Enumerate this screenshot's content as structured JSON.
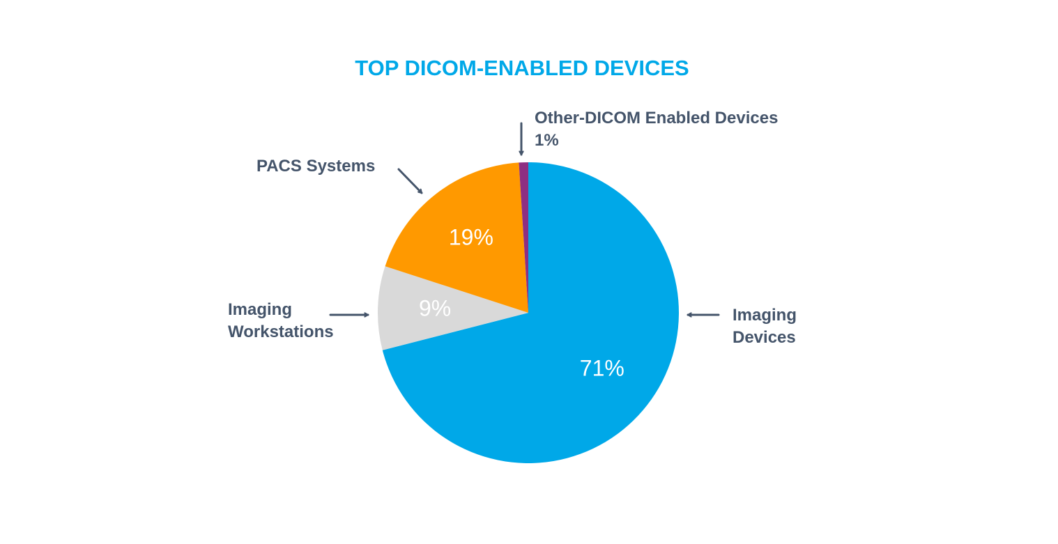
{
  "chart_data": {
    "type": "pie",
    "title": "TOP DICOM-ENABLED DEVICES",
    "start_angle_deg": 0,
    "direction": "clockwise",
    "slices": [
      {
        "name": "Imaging Devices",
        "label_lines": [
          "Imaging",
          "Devices"
        ],
        "value": 71,
        "value_label": "71%",
        "color": "#00a8e8"
      },
      {
        "name": "Imaging Workstations",
        "label_lines": [
          "Imaging",
          "Workstations"
        ],
        "value": 9,
        "value_label": "9%",
        "color": "#d9d9d9"
      },
      {
        "name": "PACS Systems",
        "label_lines": [
          "PACS Systems"
        ],
        "value": 19,
        "value_label": "19%",
        "color": "#ff9900"
      },
      {
        "name": "Other-DICOM Enabled Devices",
        "label_lines": [
          "Other-DICOM Enabled Devices",
          "1%"
        ],
        "value": 1,
        "value_label": "",
        "color": "#8e2f82"
      }
    ],
    "colors": {
      "title": "#00a8e8",
      "label": "#44546a",
      "value_text": "#ffffff"
    }
  }
}
